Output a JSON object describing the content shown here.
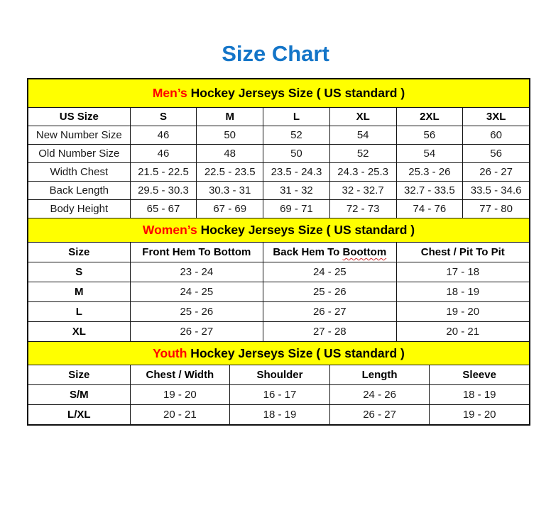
{
  "page": {
    "title": "Size Chart"
  },
  "colors": {
    "title_blue": "#1475C8",
    "band_yellow": "#FFFF00",
    "highlight_red": "#FF0000",
    "border_black": "#000000"
  },
  "tables": [
    {
      "id": "mens",
      "heading": {
        "highlight": "Men’s",
        "rest": " Hockey Jerseys Size ( US standard )"
      },
      "columns": [
        {
          "label": "US Size"
        },
        {
          "label": "S"
        },
        {
          "label": "M"
        },
        {
          "label": "L"
        },
        {
          "label": "XL"
        },
        {
          "label": "2XL"
        },
        {
          "label": "3XL"
        }
      ],
      "rows": [
        {
          "label": "New Number Size",
          "values": [
            "46",
            "50",
            "52",
            "54",
            "56",
            "60"
          ]
        },
        {
          "label": "Old Number Size",
          "values": [
            "46",
            "48",
            "50",
            "52",
            "54",
            "56"
          ]
        },
        {
          "label": "Width Chest",
          "values": [
            "21.5 - 22.5",
            "22.5 - 23.5",
            "23.5 - 24.3",
            "24.3 - 25.3",
            "25.3 - 26",
            "26 - 27"
          ]
        },
        {
          "label": "Back Length",
          "values": [
            "29.5 - 30.3",
            "30.3 - 31",
            "31 - 32",
            "32 - 32.7",
            "32.7 - 33.5",
            "33.5 - 34.6"
          ]
        },
        {
          "label": "Body Height",
          "values": [
            "65 - 67",
            "67 - 69",
            "69 - 71",
            "72 - 73",
            "74 - 76",
            "77 - 80"
          ]
        }
      ]
    },
    {
      "id": "womens",
      "heading": {
        "highlight": "Women’s",
        "rest": " Hockey Jerseys Size ( US standard )"
      },
      "columns": [
        {
          "label": "Size"
        },
        {
          "label": "Front Hem To Bottom"
        },
        {
          "label": "Back Hem To Boottom",
          "underline_word": "Boottom"
        },
        {
          "label": "Chest / Pit To Pit"
        }
      ],
      "rows": [
        {
          "label": "S",
          "values": [
            "23 - 24",
            "24 - 25",
            "17 - 18"
          ]
        },
        {
          "label": "M",
          "values": [
            "24 - 25",
            "25 - 26",
            "18 - 19"
          ]
        },
        {
          "label": "L",
          "values": [
            "25 - 26",
            "26 - 27",
            "19 - 20"
          ]
        },
        {
          "label": "XL",
          "values": [
            "26 - 27",
            "27 - 28",
            "20 - 21"
          ]
        }
      ]
    },
    {
      "id": "youth",
      "heading": {
        "highlight": "Youth",
        "rest": " Hockey Jerseys Size ( US standard )"
      },
      "columns": [
        {
          "label": "Size"
        },
        {
          "label": "Chest / Width"
        },
        {
          "label": "Shoulder"
        },
        {
          "label": "Length"
        },
        {
          "label": "Sleeve"
        }
      ],
      "rows": [
        {
          "label": "S/M",
          "values": [
            "19 - 20",
            "16 - 17",
            "24 - 26",
            "18 - 19"
          ]
        },
        {
          "label": "L/XL",
          "values": [
            "20 - 21",
            "18 - 19",
            "26 - 27",
            "19 - 20"
          ]
        }
      ]
    }
  ]
}
